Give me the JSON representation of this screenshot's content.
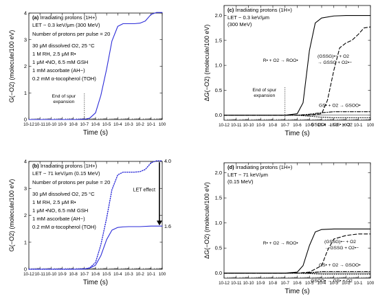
{
  "chart_data": [
    {
      "id": "a",
      "type": "line",
      "panel_label": "(a)",
      "xscale": "log",
      "xlim_exp": [
        -12,
        0
      ],
      "xtick_labels": [
        "10-12",
        "10-11",
        "10-10",
        "10-9",
        "10-8",
        "10-7",
        "10-6",
        "10-5",
        "10-4",
        "10-3",
        "10-2",
        "10-1",
        "100"
      ],
      "xlabel": "Time (s)",
      "ylabel": "G(−O2) (molecule/100 eV)",
      "ylim": [
        0,
        4
      ],
      "ytick_labels": [
        "0",
        "1",
        "2",
        "3",
        "4"
      ],
      "annotation_lines": [
        "Irradiating protons (1H+)",
        "LET ~ 0.3 keV/μm (300 MeV)",
        "Number of protons per pulse = 20",
        "30 μM dissolved O2, 25 °C",
        "1 M RH, 2.5 μM R•",
        "1 μM •NO, 6.5 mM GSH",
        "1 mM ascorbate (AH−)",
        "0.2 mM α-tocopherol (TOH)"
      ],
      "marker_label": [
        "End of spur",
        "expansion"
      ],
      "marker_time_s": 1e-07,
      "series": [
        {
          "style": "solid",
          "color": "#2a2ad8",
          "x": [
            1e-12,
            1e-08,
            1e-07,
            3e-07,
            1e-06,
            3e-06,
            1e-05,
            3e-05,
            0.0001,
            0.0003,
            0.001,
            0.003,
            0.01,
            0.03,
            0.1,
            0.3,
            1
          ],
          "y": [
            0,
            0,
            0.01,
            0.05,
            0.25,
            0.9,
            1.9,
            2.95,
            3.5,
            3.6,
            3.6,
            3.6,
            3.62,
            3.7,
            3.95,
            4.02,
            4.02
          ]
        }
      ]
    },
    {
      "id": "b",
      "type": "line",
      "panel_label": "(b)",
      "xscale": "log",
      "xlim_exp": [
        -12,
        0
      ],
      "xtick_labels": [
        "10-12",
        "10-11",
        "10-10",
        "10-9",
        "10-8",
        "10-7",
        "10-6",
        "10-5",
        "10-4",
        "10-3",
        "10-2",
        "10-1",
        "100"
      ],
      "xlabel": "Time (s)",
      "ylabel": "G(−O2) (molecule/100 eV)",
      "ylim": [
        0,
        4
      ],
      "ytick_labels": [
        "0",
        "1",
        "2",
        "3",
        "4"
      ],
      "annotation_lines": [
        "Irradiating protons (1H+)",
        "LET ~ 71 keV/μm (0.15 MeV)",
        "Number of protons per pulse = 20",
        "30 μM dissolved O2, 25 °C",
        "1 M RH, 2.5 μM R•",
        "1 μM •NO, 6.5 mM GSH",
        "1 mM ascorbate (AH−)",
        "0.2 mM α-tocopherol (TOH)"
      ],
      "arrow_label": "LET effect",
      "value_labels": [
        "4.0",
        "1.6"
      ],
      "series": [
        {
          "style": "dotted",
          "color": "#2a2ad8",
          "x": [
            1e-12,
            1e-08,
            1e-07,
            3e-07,
            1e-06,
            3e-06,
            1e-05,
            3e-05,
            0.0001,
            0.0003,
            0.001,
            0.003,
            0.01,
            0.03,
            0.1,
            0.3,
            1
          ],
          "y": [
            0,
            0,
            0.01,
            0.05,
            0.25,
            0.9,
            1.9,
            2.95,
            3.5,
            3.6,
            3.6,
            3.6,
            3.62,
            3.7,
            3.95,
            4.02,
            4.02
          ]
        },
        {
          "style": "solid",
          "color": "#2a2ad8",
          "x": [
            1e-12,
            1e-08,
            1e-07,
            3e-07,
            1e-06,
            3e-06,
            1e-05,
            3e-05,
            0.0001,
            0.0003,
            0.001,
            0.01,
            0.1,
            1
          ],
          "y": [
            0,
            0,
            0.01,
            0.04,
            0.15,
            0.5,
            1.1,
            1.45,
            1.55,
            1.57,
            1.58,
            1.58,
            1.6,
            1.6
          ]
        }
      ]
    },
    {
      "id": "c",
      "type": "line",
      "panel_label": "(c)",
      "xscale": "log",
      "xlim_exp": [
        -12,
        0
      ],
      "xtick_labels": [
        "10-12",
        "10-11",
        "10-10",
        "10-9",
        "10-8",
        "10-7",
        "10-6",
        "10-5",
        "10-4",
        "10-3",
        "10-2",
        "10-1",
        "100"
      ],
      "xlabel": "Time (s)",
      "ylabel": "ΔG(−O2) (molecule/100 eV)",
      "ylim": [
        -0.1,
        2.2
      ],
      "yticks": [
        0,
        0.5,
        1.0,
        1.5,
        2.0
      ],
      "ytick_labels": [
        "0.0",
        "0.5",
        "1.0",
        "1.5",
        "2.0"
      ],
      "annotation_lines": [
        "Irradiating protons (1H+)",
        "LET ~ 0.3 keV/μm",
        "(300 MeV)"
      ],
      "marker_label": [
        "End of spur",
        "expansion"
      ],
      "marker_time_s": 1e-07,
      "reaction_labels": {
        "r1": "R• + O2 → ROO•",
        "r2a": "(GSSG)•− + O2",
        "r2b": "→ GSSG + O2•−",
        "r3": "GS• + O2 → GSOO•",
        "r4": "GSOO• → GS• + O2"
      },
      "series": [
        {
          "style": "solid",
          "color": "#000000",
          "x": [
            1e-12,
            1e-08,
            1e-07,
            1e-06,
            3e-06,
            1e-05,
            3e-05,
            0.0001,
            0.001,
            0.01,
            0.1,
            1
          ],
          "y": [
            0,
            0,
            0,
            0.03,
            0.25,
            1.3,
            1.85,
            1.95,
            1.99,
            2.0,
            2.0,
            2.0
          ]
        },
        {
          "style": "dashed",
          "color": "#000000",
          "x": [
            1e-12,
            1e-05,
            0.0001,
            0.0003,
            0.001,
            0.003,
            0.01,
            0.03,
            0.1,
            0.3,
            1
          ],
          "y": [
            0,
            0,
            0.03,
            0.3,
            0.9,
            1.35,
            1.45,
            1.5,
            1.62,
            1.75,
            1.77
          ]
        },
        {
          "style": "dashdot",
          "color": "#000000",
          "x": [
            1e-12,
            1e-06,
            1e-05,
            0.0001,
            0.001,
            0.01,
            0.1,
            1
          ],
          "y": [
            0,
            0,
            0.02,
            0.05,
            0.07,
            0.07,
            0.07,
            0.07
          ]
        },
        {
          "style": "dotted",
          "color": "#000000",
          "x": [
            1e-12,
            1e-06,
            1e-05,
            0.0001,
            0.001,
            0.01,
            0.1,
            1
          ],
          "y": [
            0,
            0,
            -0.02,
            -0.04,
            -0.05,
            -0.05,
            -0.05,
            -0.05
          ]
        }
      ]
    },
    {
      "id": "d",
      "type": "line",
      "panel_label": "(d)",
      "xscale": "log",
      "xlim_exp": [
        -12,
        0
      ],
      "xtick_labels": [
        "10-12",
        "10-11",
        "10-10",
        "10-9",
        "10-8",
        "10-7",
        "10-6",
        "10-5",
        "10-4",
        "10-3",
        "10-2",
        "10-1",
        "100"
      ],
      "xlabel": "Time (s)",
      "ylabel": "ΔG(−O2) (molecule/100 eV)",
      "ylim": [
        -0.1,
        2.2
      ],
      "yticks": [
        0,
        0.5,
        1.0,
        1.5,
        2.0
      ],
      "ytick_labels": [
        "0.0",
        "0.5",
        "1.0",
        "1.5",
        "2.0"
      ],
      "annotation_lines": [
        "Irradiating protons (1H+)",
        "LET ~ 71 keV/μm",
        "(0.15 MeV)"
      ],
      "reaction_labels": {
        "r1": "R• + O2 → ROO•",
        "r2a": "(GSSG)•− + O2",
        "r2b": "→ GSSG + O2•−",
        "r3": "GS• + O2 → GSOO•",
        "r4": "GSOO• → GS• + O2"
      },
      "series": [
        {
          "style": "solid",
          "color": "#000000",
          "x": [
            1e-12,
            1e-07,
            1e-06,
            3e-06,
            1e-05,
            3e-05,
            0.0001,
            0.001,
            0.01,
            0.1,
            1
          ],
          "y": [
            0,
            0,
            0.02,
            0.15,
            0.55,
            0.82,
            0.87,
            0.88,
            0.88,
            0.88,
            0.88
          ]
        },
        {
          "style": "dashed",
          "color": "#000000",
          "x": [
            1e-12,
            1e-06,
            1e-05,
            0.0001,
            0.0003,
            0.001,
            0.01,
            0.1,
            1
          ],
          "y": [
            0,
            0,
            0.02,
            0.15,
            0.45,
            0.68,
            0.75,
            0.78,
            0.78
          ]
        },
        {
          "style": "dashdot",
          "color": "#000000",
          "x": [
            1e-12,
            1e-06,
            1e-05,
            0.0001,
            0.001,
            0.1,
            1
          ],
          "y": [
            0,
            0,
            0.01,
            0.03,
            0.03,
            0.03,
            0.03
          ]
        },
        {
          "style": "dotted",
          "color": "#000000",
          "x": [
            1e-12,
            1e-06,
            1e-05,
            0.0001,
            0.001,
            0.1,
            1
          ],
          "y": [
            0,
            0,
            -0.01,
            -0.02,
            -0.02,
            -0.02,
            -0.02
          ]
        }
      ]
    }
  ]
}
